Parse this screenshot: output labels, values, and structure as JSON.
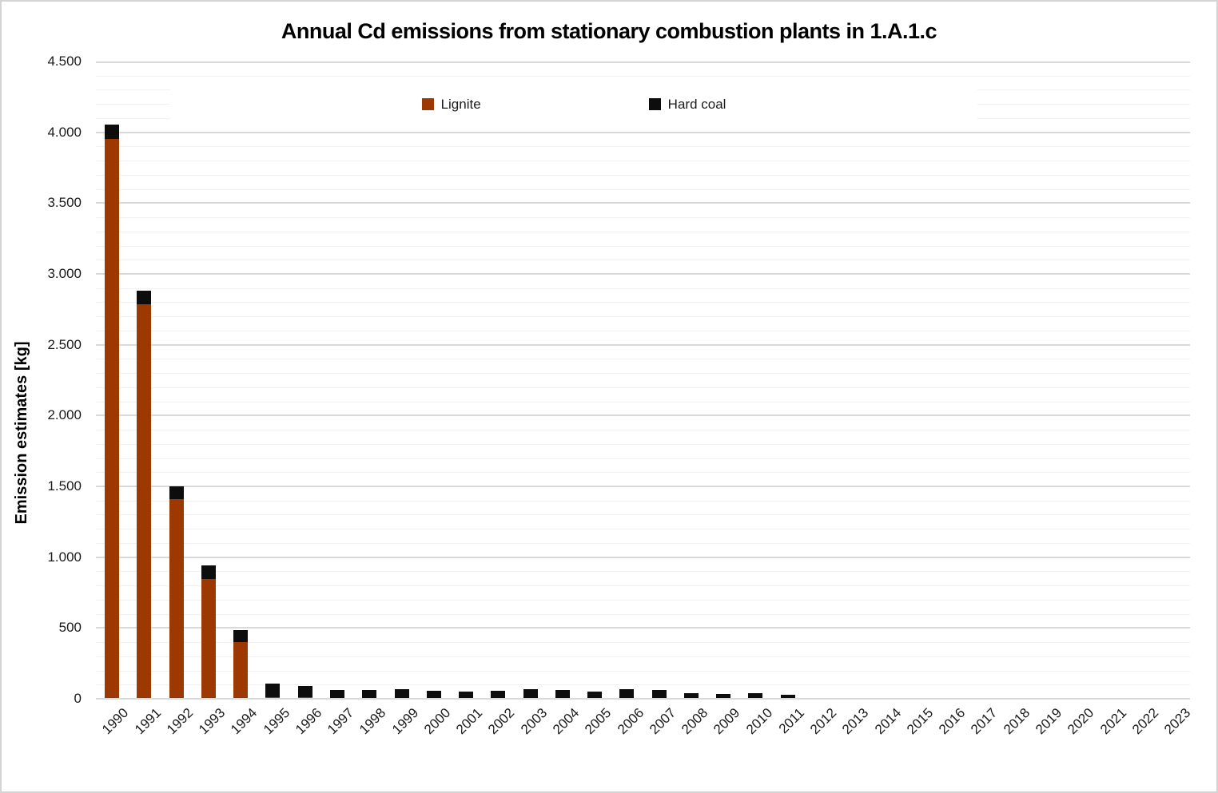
{
  "colors": {
    "lignite": "#9C3800",
    "hard_coal": "#0D0D0D",
    "grid_major": "#D9D9D9",
    "grid_minor": "#F1F1F1",
    "chart_border": "#D4D4D4",
    "text": "#1A1A1A",
    "background": "#FFFFFF"
  },
  "legend": {
    "position": "top-center",
    "items": [
      {
        "label": "Lignite",
        "color": "#9C3800"
      },
      {
        "label": "Hard coal",
        "color": "#0D0D0D"
      }
    ]
  },
  "chart_data": {
    "type": "bar",
    "stacked": true,
    "title": "Annual Cd emissions from stationary combustion plants in 1.A.1.c",
    "xlabel": "",
    "ylabel": "Emission estimates [kg]",
    "ylim": [
      0,
      4500
    ],
    "y_major_step": 500,
    "y_minor_step": 100,
    "y_tick_labels": [
      "0",
      "500",
      "1.000",
      "1.500",
      "2.000",
      "2.500",
      "3.000",
      "3.500",
      "4.000",
      "4.500"
    ],
    "grid": true,
    "legend_position": "top-center",
    "categories": [
      "1990",
      "1991",
      "1992",
      "1993",
      "1994",
      "1995",
      "1996",
      "1997",
      "1998",
      "1999",
      "2000",
      "2001",
      "2002",
      "2003",
      "2004",
      "2005",
      "2006",
      "2007",
      "2008",
      "2009",
      "2010",
      "2011",
      "2012",
      "2013",
      "2014",
      "2015",
      "2016",
      "2017",
      "2018",
      "2019",
      "2020",
      "2021",
      "2022",
      "2023"
    ],
    "series": [
      {
        "name": "Lignite",
        "color": "#9C3800",
        "values": [
          3955,
          2785,
          1410,
          845,
          398,
          12,
          10,
          8,
          3,
          8,
          3,
          3,
          3,
          3,
          3,
          3,
          3,
          3,
          2,
          2,
          2,
          2,
          0,
          0,
          0,
          0,
          0,
          0,
          0,
          0,
          0,
          0,
          0,
          0
        ]
      },
      {
        "name": "Hard coal",
        "color": "#0D0D0D",
        "values": [
          100,
          95,
          90,
          95,
          85,
          93,
          80,
          57,
          59,
          60,
          55,
          49,
          52,
          62,
          59,
          49,
          67,
          59,
          38,
          30,
          36,
          26,
          0,
          0,
          0,
          0,
          0,
          0,
          0,
          0,
          0,
          0,
          0,
          0
        ]
      }
    ]
  }
}
